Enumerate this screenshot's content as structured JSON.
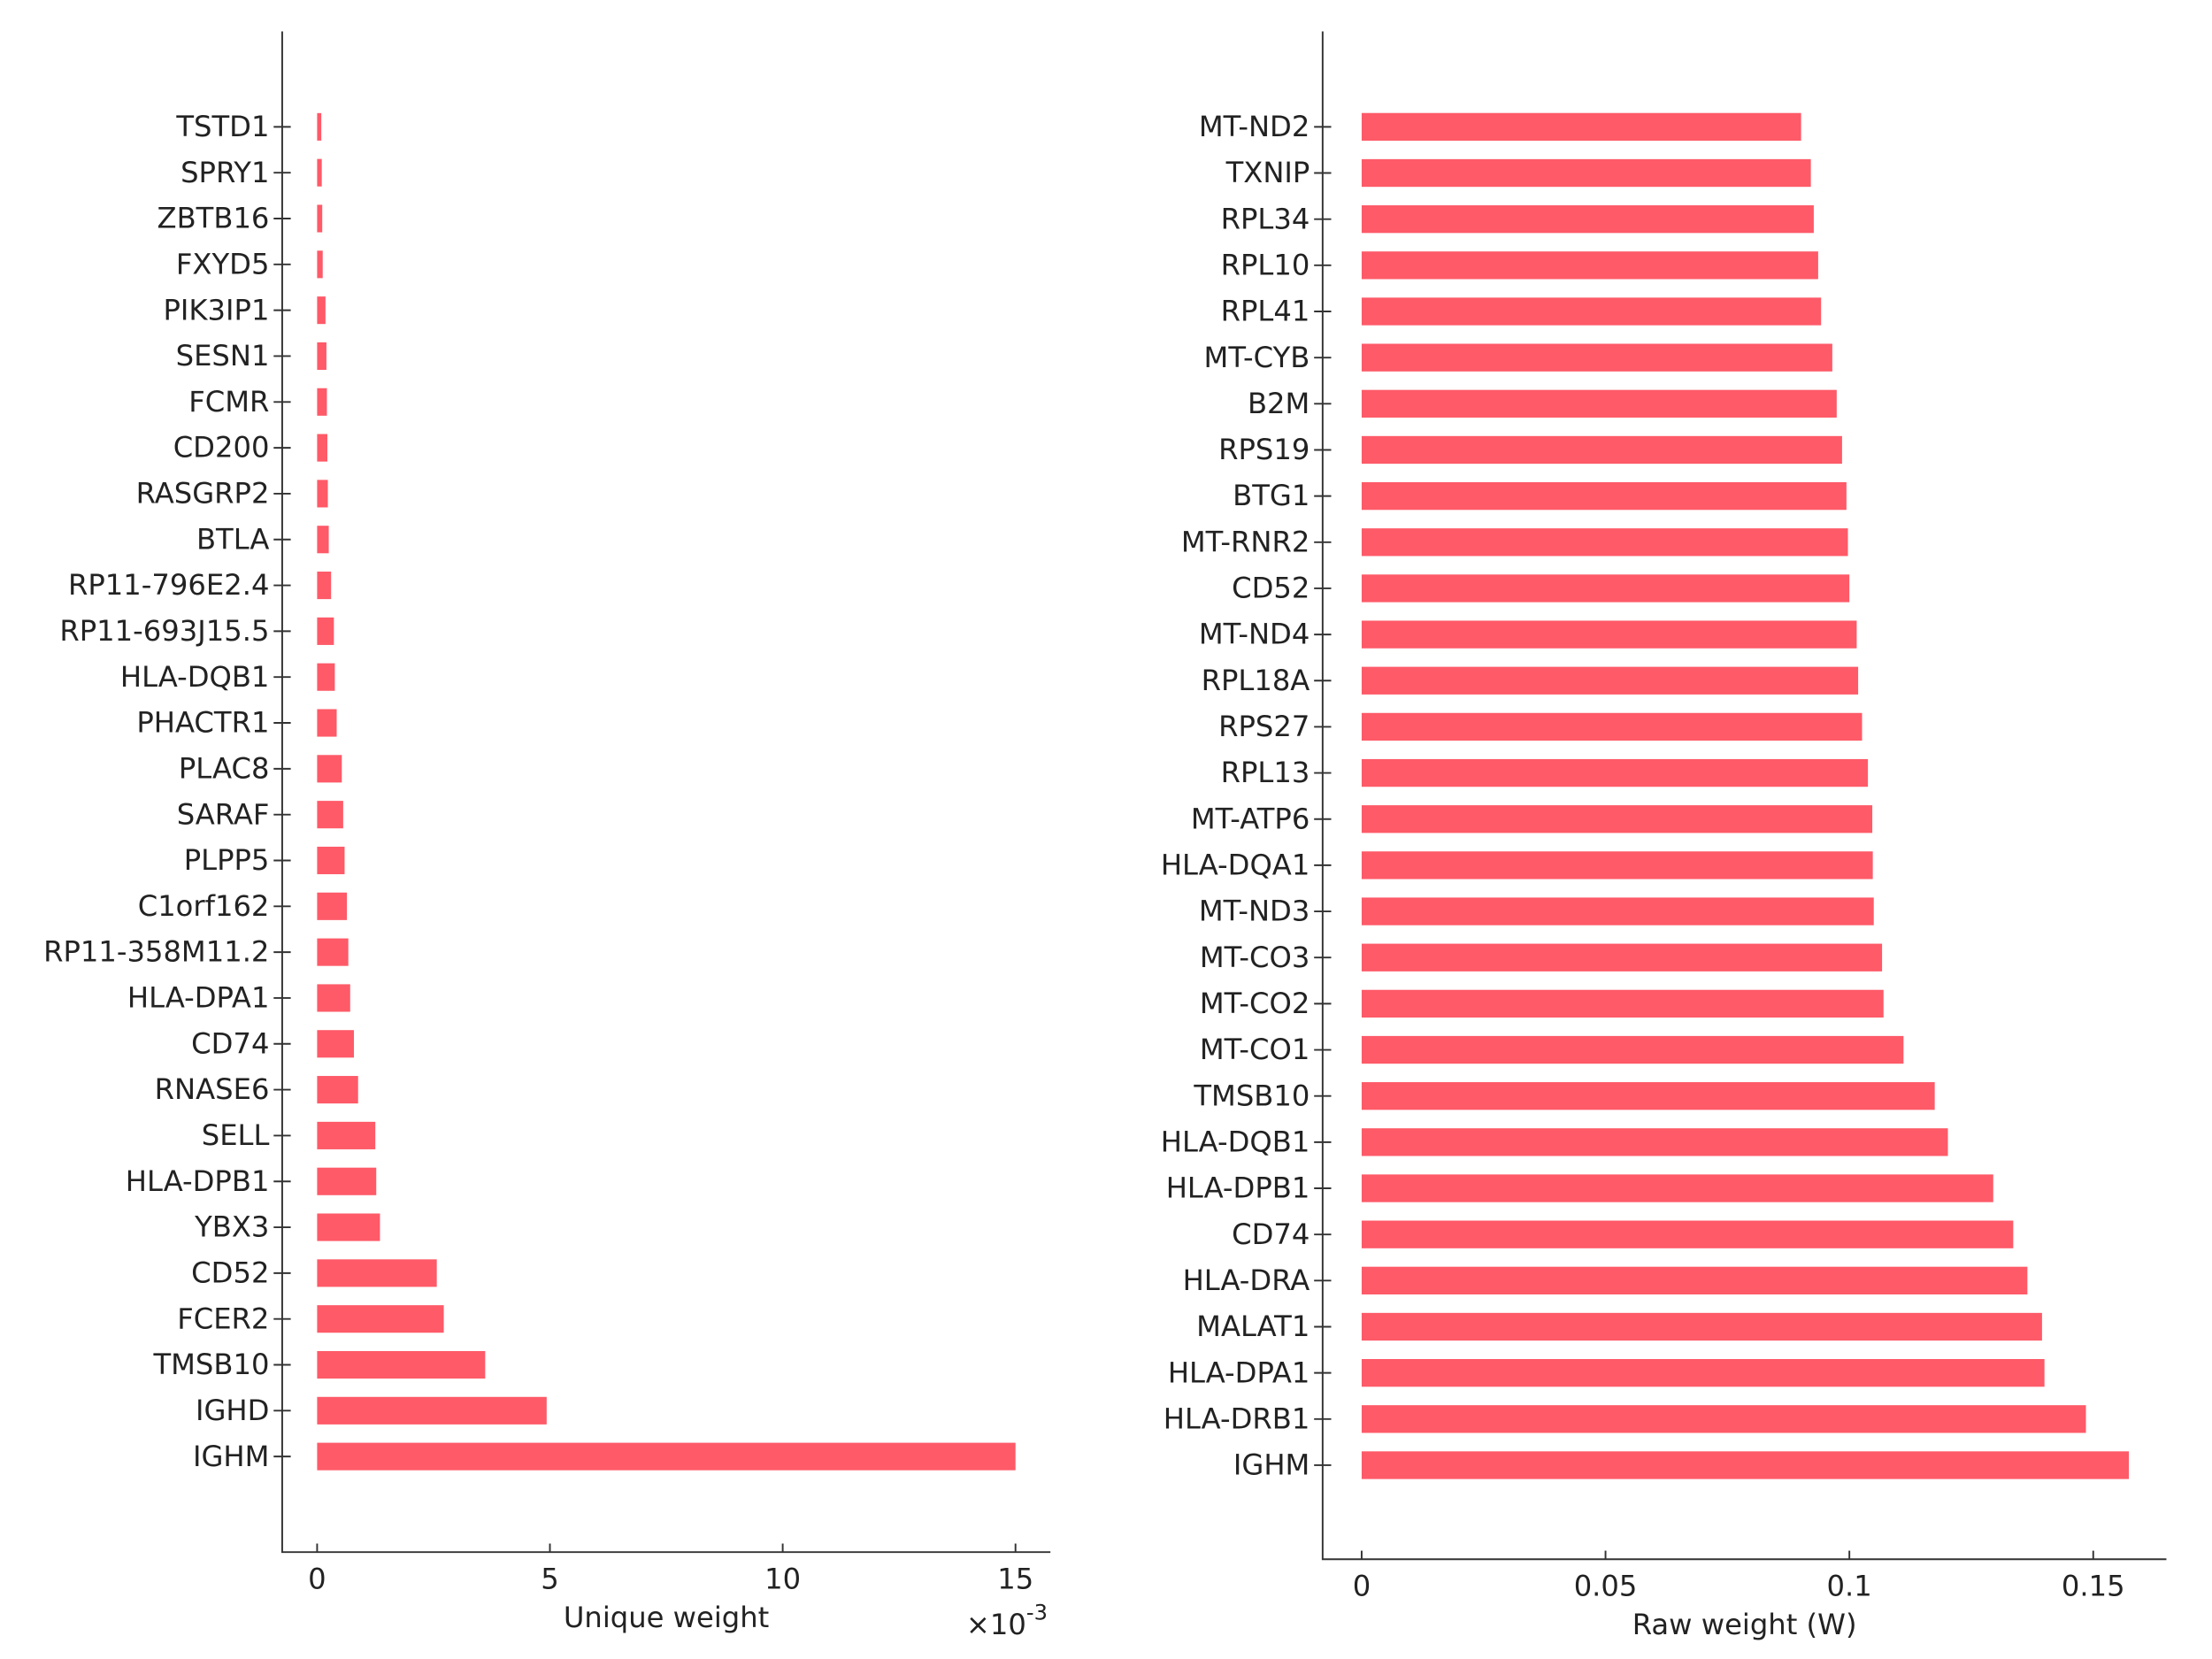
{
  "chart_data": [
    {
      "type": "bar",
      "orientation": "horizontal",
      "xlabel": "Unique weight",
      "x_multiplier": {
        "base": "×10",
        "exponent": "-3"
      },
      "categories": [
        "TSTD1",
        "SPRY1",
        "ZBTB16",
        "FXYD5",
        "PIK3IP1",
        "SESN1",
        "FCMR",
        "CD200",
        "RASGRP2",
        "BTLA",
        "RP11-796E2.4",
        "RP11-693J15.5",
        "HLA-DQB1",
        "PHACTR1",
        "PLAC8",
        "SARAF",
        "PLPP5",
        "C1orf162",
        "RP11-358M11.2",
        "HLA-DPA1",
        "CD74",
        "RNASE6",
        "SELL",
        "HLA-DPB1",
        "YBX3",
        "CD52",
        "FCER2",
        "TMSB10",
        "IGHD",
        "IGHM"
      ],
      "values": [
        0.09,
        0.1,
        0.11,
        0.12,
        0.18,
        0.2,
        0.21,
        0.22,
        0.23,
        0.25,
        0.3,
        0.36,
        0.38,
        0.42,
        0.53,
        0.56,
        0.59,
        0.64,
        0.67,
        0.71,
        0.79,
        0.88,
        1.25,
        1.27,
        1.35,
        2.57,
        2.72,
        3.61,
        4.93,
        15.0
      ],
      "color": "#fe5a68",
      "xlim": [
        -0.75,
        15.75
      ],
      "xticks": [
        0,
        5,
        10,
        15
      ]
    },
    {
      "type": "bar",
      "orientation": "horizontal",
      "xlabel": "Raw weight (W)",
      "categories": [
        "MT-ND2",
        "TXNIP",
        "RPL34",
        "RPL10",
        "RPL41",
        "MT-CYB",
        "B2M",
        "RPS19",
        "BTG1",
        "MT-RNR2",
        "CD52",
        "MT-ND4",
        "RPL18A",
        "RPS27",
        "RPL13",
        "MT-ATP6",
        "HLA-DQA1",
        "MT-ND3",
        "MT-CO3",
        "MT-CO2",
        "MT-CO1",
        "TMSB10",
        "HLA-DQB1",
        "HLA-DPB1",
        "CD74",
        "HLA-DRA",
        "MALAT1",
        "HLA-DPA1",
        "HLA-DRB1",
        "IGHM"
      ],
      "values": [
        0.0901,
        0.0921,
        0.0927,
        0.0936,
        0.0942,
        0.0965,
        0.0974,
        0.0985,
        0.0994,
        0.0997,
        0.1,
        0.1015,
        0.1018,
        0.1026,
        0.1038,
        0.1047,
        0.1048,
        0.105,
        0.1067,
        0.107,
        0.1111,
        0.1175,
        0.1202,
        0.1295,
        0.1336,
        0.1365,
        0.1395,
        0.14,
        0.1485,
        0.1573
      ],
      "color": "#fe5a68",
      "xlim": [
        -0.008,
        0.165
      ],
      "xticks": [
        0,
        0.05,
        0.1,
        0.15
      ]
    }
  ]
}
